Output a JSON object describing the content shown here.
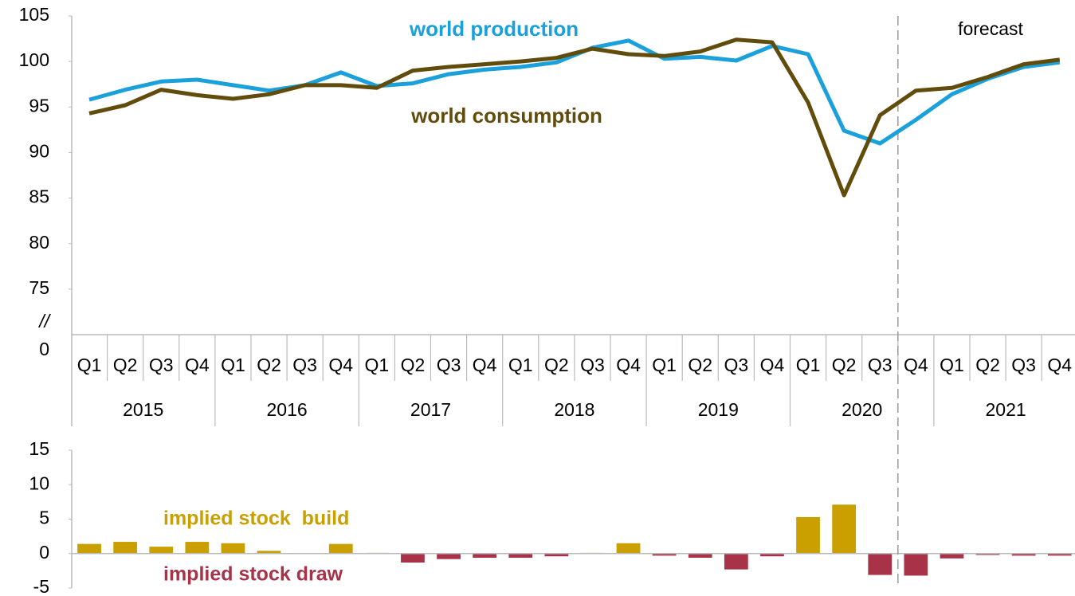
{
  "chart_data": [
    {
      "type": "line",
      "categories": [
        "Q1",
        "Q2",
        "Q3",
        "Q4",
        "Q1",
        "Q2",
        "Q3",
        "Q4",
        "Q1",
        "Q2",
        "Q3",
        "Q4",
        "Q1",
        "Q2",
        "Q3",
        "Q4",
        "Q1",
        "Q2",
        "Q3",
        "Q4",
        "Q1",
        "Q2",
        "Q3",
        "Q4",
        "Q1",
        "Q2",
        "Q3",
        "Q4"
      ],
      "category_groups": [
        "2015",
        "2016",
        "2017",
        "2018",
        "2019",
        "2020",
        "2021"
      ],
      "series": [
        {
          "name": "world production",
          "color": "#1aa0da",
          "values": [
            95.8,
            96.9,
            97.8,
            98.0,
            97.4,
            96.8,
            97.4,
            98.8,
            97.3,
            97.6,
            98.6,
            99.1,
            99.4,
            99.9,
            101.5,
            102.3,
            100.3,
            100.5,
            100.1,
            101.7,
            100.8,
            92.4,
            91.0,
            93.6,
            96.4,
            98.1,
            99.4,
            99.9
          ]
        },
        {
          "name": "world consumption",
          "color": "#614c0c",
          "values": [
            94.3,
            95.2,
            96.9,
            96.3,
            95.9,
            96.4,
            97.4,
            97.4,
            97.1,
            99.0,
            99.4,
            99.7,
            100.0,
            100.4,
            101.4,
            100.8,
            100.6,
            101.1,
            102.4,
            102.1,
            95.5,
            85.3,
            94.1,
            96.8,
            97.1,
            98.3,
            99.7,
            100.2
          ]
        }
      ],
      "ylim": [
        70,
        105
      ],
      "yticks": [
        75,
        80,
        85,
        90,
        95,
        100,
        105
      ],
      "axis_break": "//",
      "axis_base": 0,
      "forecast": {
        "label": "forecast",
        "from_group": "2020",
        "from_category": "Q4"
      }
    },
    {
      "type": "bar",
      "values": [
        1.4,
        1.7,
        1.0,
        1.7,
        1.5,
        0.4,
        0.0,
        1.4,
        0.1,
        -1.3,
        -0.8,
        -0.6,
        -0.6,
        -0.4,
        0.1,
        1.5,
        -0.3,
        -0.6,
        -2.3,
        -0.4,
        5.3,
        7.1,
        -3.1,
        -3.2,
        -0.7,
        -0.2,
        -0.3,
        -0.3
      ],
      "positive_color": "#c9a000",
      "negative_color": "#a83248",
      "ylim": [
        -5,
        15
      ],
      "yticks": [
        -5,
        0,
        5,
        10,
        15
      ],
      "annotations": [
        {
          "text": "implied stock  build",
          "color": "#c9a000"
        },
        {
          "text": "implied stock draw",
          "color": "#a83248"
        }
      ]
    }
  ]
}
